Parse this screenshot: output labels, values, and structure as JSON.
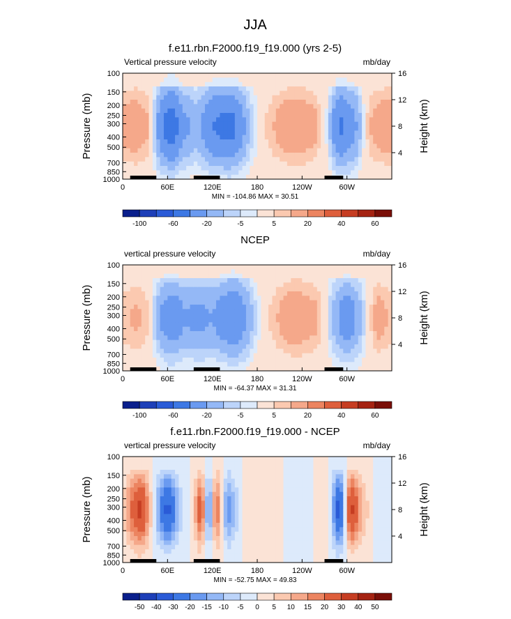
{
  "figure": {
    "title": "JJA"
  },
  "chart_data": [
    {
      "type": "heatmap",
      "title": "f.e11.rbn.F2000.f19_f19.000 (yrs 2-5)",
      "left_label": "Vertical pressure velocity",
      "right_label": "mb/day",
      "ylabel": "Pressure (mb)",
      "ylabel_right": "Height (km)",
      "stats": "MIN = -104.86  MAX =  30.51",
      "x_ticks": [
        "0",
        "60E",
        "120E",
        "180",
        "120W",
        "60W"
      ],
      "y_ticks": [
        "100",
        "150",
        "200",
        "250",
        "300",
        "400",
        "500",
        "700",
        "850",
        "1000"
      ],
      "y_ticks_right": [
        "16",
        "12",
        "8",
        "4"
      ],
      "ylim": [
        1000,
        100
      ],
      "xlim": [
        0,
        360
      ],
      "levels": [
        -100,
        -80,
        -60,
        -40,
        -20,
        -10,
        -5,
        -2,
        2,
        5,
        10,
        20,
        30,
        40,
        50,
        60
      ],
      "colorbar_labels": [
        "-100",
        "-60",
        "-20",
        "-5",
        "5",
        "20",
        "40",
        "60"
      ],
      "longitude_profile": [
        {
          "lon": 0,
          "omega": 15
        },
        {
          "lon": 20,
          "omega": 18
        },
        {
          "lon": 35,
          "omega": 10
        },
        {
          "lon": 50,
          "omega": -30
        },
        {
          "lon": 65,
          "omega": -60
        },
        {
          "lon": 80,
          "omega": -25
        },
        {
          "lon": 100,
          "omega": -15
        },
        {
          "lon": 120,
          "omega": -40
        },
        {
          "lon": 145,
          "omega": -50
        },
        {
          "lon": 170,
          "omega": -10
        },
        {
          "lon": 190,
          "omega": 5
        },
        {
          "lon": 225,
          "omega": 20
        },
        {
          "lon": 255,
          "omega": 15
        },
        {
          "lon": 275,
          "omega": -5
        },
        {
          "lon": 290,
          "omega": -45
        },
        {
          "lon": 310,
          "omega": -25
        },
        {
          "lon": 330,
          "omega": 10
        },
        {
          "lon": 350,
          "omega": 18
        }
      ]
    },
    {
      "type": "heatmap",
      "title": "NCEP",
      "left_label": "vertical pressure velocity",
      "right_label": "mb/day",
      "ylabel": "Pressure (mb)",
      "ylabel_right": "Height (km)",
      "stats": "MIN = -64.37  MAX =  31.31",
      "x_ticks": [
        "0",
        "60E",
        "120E",
        "180",
        "120W",
        "60W"
      ],
      "y_ticks": [
        "100",
        "150",
        "200",
        "250",
        "300",
        "400",
        "500",
        "700",
        "850",
        "1000"
      ],
      "y_ticks_right": [
        "16",
        "12",
        "8",
        "4"
      ],
      "ylim": [
        1000,
        100
      ],
      "xlim": [
        0,
        360
      ],
      "levels": [
        -100,
        -80,
        -60,
        -40,
        -20,
        -10,
        -5,
        -2,
        2,
        5,
        10,
        20,
        30,
        40,
        50,
        60
      ],
      "colorbar_labels": [
        "-100",
        "-60",
        "-20",
        "-5",
        "5",
        "20",
        "40",
        "60"
      ],
      "longitude_profile": [
        {
          "lon": 0,
          "omega": 8
        },
        {
          "lon": 20,
          "omega": 12
        },
        {
          "lon": 35,
          "omega": 5
        },
        {
          "lon": 50,
          "omega": -20
        },
        {
          "lon": 65,
          "omega": -35
        },
        {
          "lon": 85,
          "omega": -20
        },
        {
          "lon": 100,
          "omega": -25
        },
        {
          "lon": 120,
          "omega": -20
        },
        {
          "lon": 150,
          "omega": -40
        },
        {
          "lon": 175,
          "omega": -8
        },
        {
          "lon": 195,
          "omega": 5
        },
        {
          "lon": 230,
          "omega": 20
        },
        {
          "lon": 260,
          "omega": 12
        },
        {
          "lon": 280,
          "omega": -10
        },
        {
          "lon": 300,
          "omega": -35
        },
        {
          "lon": 320,
          "omega": -10
        },
        {
          "lon": 340,
          "omega": 15
        },
        {
          "lon": 355,
          "omega": 10
        }
      ]
    },
    {
      "type": "heatmap",
      "title": "f.e11.rbn.F2000.f19_f19.000 - NCEP",
      "left_label": "vertical pressure velocity",
      "right_label": "mb/day",
      "ylabel": "Pressure (mb)",
      "ylabel_right": "Height (km)",
      "stats": "MIN = -52.75  MAX =  49.83",
      "x_ticks": [
        "0",
        "60E",
        "120E",
        "180",
        "120W",
        "60W"
      ],
      "y_ticks": [
        "100",
        "150",
        "200",
        "250",
        "300",
        "400",
        "500",
        "700",
        "850",
        "1000"
      ],
      "y_ticks_right": [
        "16",
        "12",
        "8",
        "4"
      ],
      "ylim": [
        1000,
        100
      ],
      "xlim": [
        0,
        360
      ],
      "levels": [
        -50,
        -40,
        -30,
        -20,
        -15,
        -10,
        -5,
        0,
        5,
        10,
        15,
        20,
        30,
        40,
        50
      ],
      "colorbar_labels": [
        "-50",
        "-40",
        "-30",
        "-20",
        "-15",
        "-10",
        "-5",
        "0",
        "5",
        "10",
        "15",
        "20",
        "30",
        "40",
        "50"
      ],
      "longitude_profile": [
        {
          "lon": 0,
          "omega": 5
        },
        {
          "lon": 15,
          "omega": 25
        },
        {
          "lon": 25,
          "omega": 35
        },
        {
          "lon": 45,
          "omega": -10
        },
        {
          "lon": 60,
          "omega": -35
        },
        {
          "lon": 75,
          "omega": -10
        },
        {
          "lon": 95,
          "omega": 5
        },
        {
          "lon": 105,
          "omega": 30
        },
        {
          "lon": 115,
          "omega": -25
        },
        {
          "lon": 125,
          "omega": 25
        },
        {
          "lon": 140,
          "omega": -20
        },
        {
          "lon": 165,
          "omega": 5
        },
        {
          "lon": 200,
          "omega": 3
        },
        {
          "lon": 240,
          "omega": -5
        },
        {
          "lon": 275,
          "omega": 5
        },
        {
          "lon": 290,
          "omega": -40
        },
        {
          "lon": 305,
          "omega": 35
        },
        {
          "lon": 320,
          "omega": 10
        },
        {
          "lon": 345,
          "omega": -5
        }
      ]
    }
  ],
  "colors": {
    "scale": [
      "#0a1f8c",
      "#1d3fb8",
      "#2a5bd7",
      "#3d78e4",
      "#6a9af0",
      "#94b8f6",
      "#bcd4fa",
      "#ddeafb",
      "#fbe3d6",
      "#fbc9b0",
      "#f5a88a",
      "#ec8460",
      "#de5f3c",
      "#c63d22",
      "#a52312",
      "#7a0f08"
    ]
  }
}
